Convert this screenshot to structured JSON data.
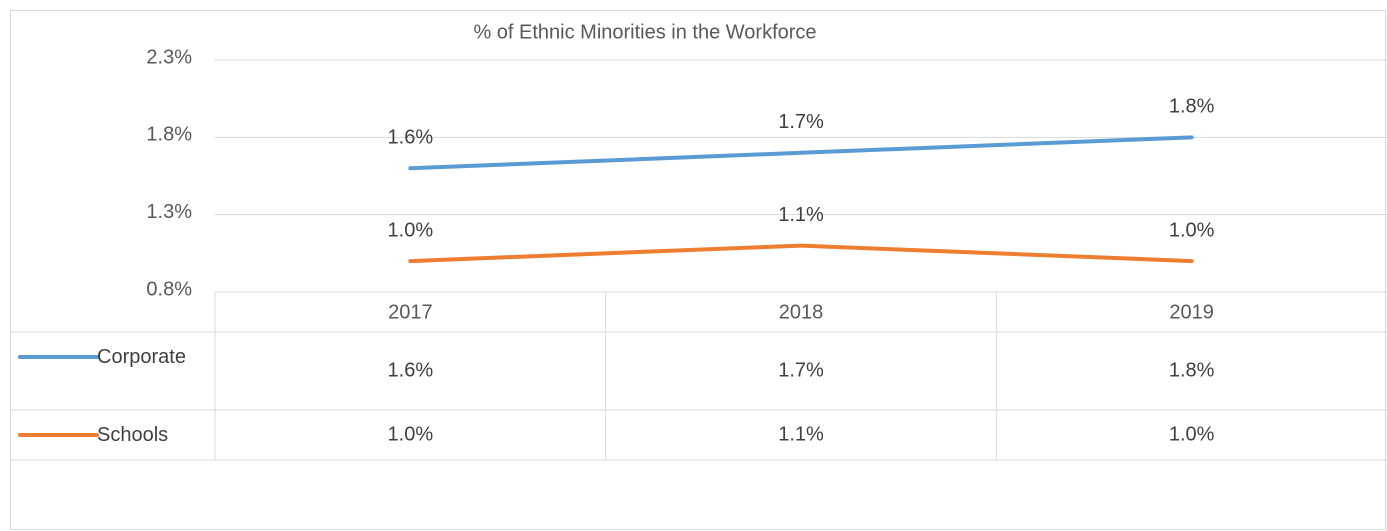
{
  "chart_data": {
    "type": "line",
    "title": "% of Ethnic Minorities in the Workforce",
    "categories": [
      "2017",
      "2018",
      "2019"
    ],
    "series": [
      {
        "name": "Corporate",
        "color": "#5b9bd5",
        "values": [
          1.6,
          1.7,
          1.8
        ],
        "value_labels": [
          "1.6%",
          "1.7%",
          "1.8%"
        ]
      },
      {
        "name": "Schools",
        "color": "#ed7d31",
        "values": [
          1.0,
          1.1,
          1.0
        ],
        "value_labels": [
          "1.0%",
          "1.1%",
          "1.0%"
        ]
      }
    ],
    "ylim": [
      0.8,
      2.3
    ],
    "yticks": [
      {
        "value": 0.8,
        "label": "0.8%"
      },
      {
        "value": 1.3,
        "label": "1.3%"
      },
      {
        "value": 1.8,
        "label": "1.8%"
      },
      {
        "value": 2.3,
        "label": "2.3%"
      }
    ],
    "grid": true,
    "data_table": true
  }
}
